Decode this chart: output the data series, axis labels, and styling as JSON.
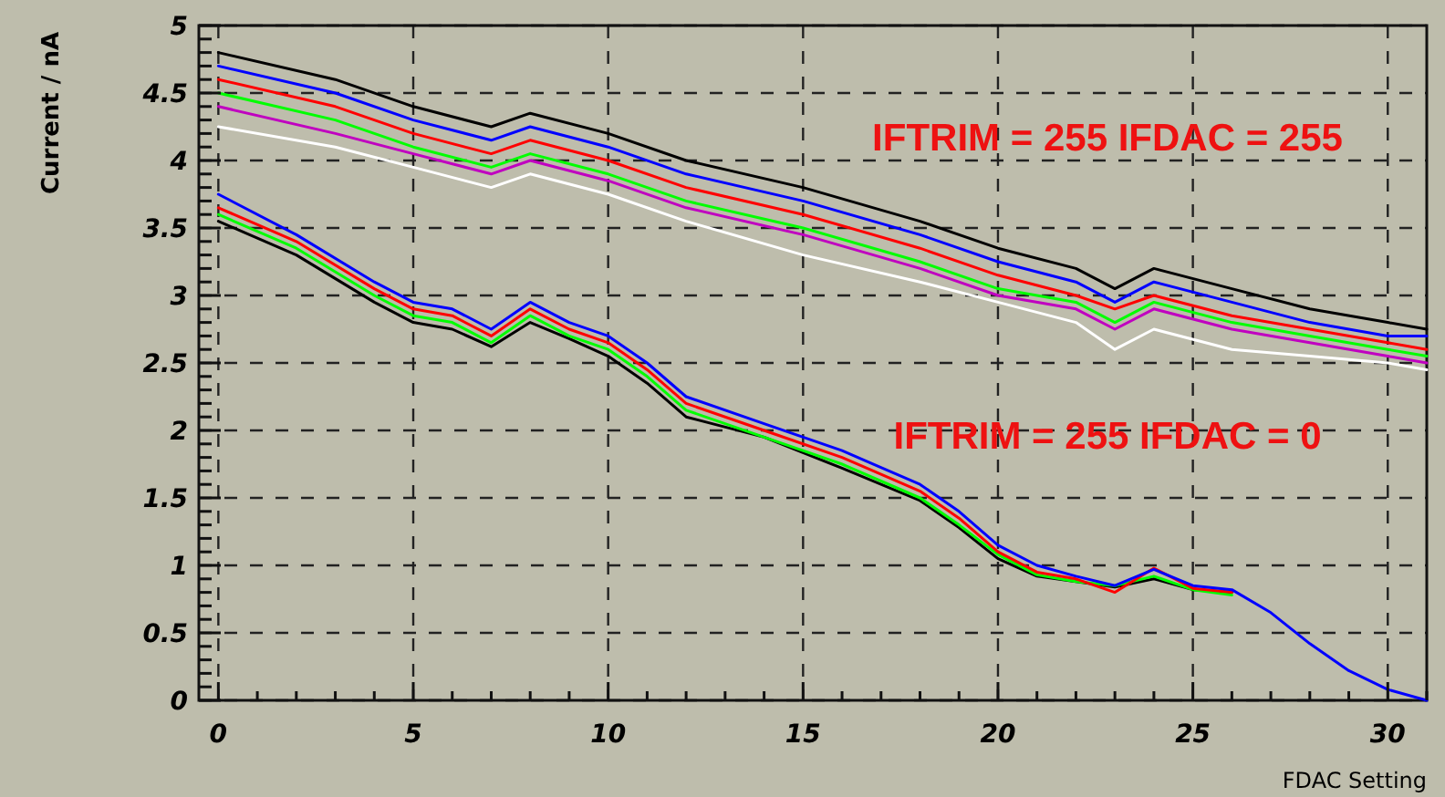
{
  "chart_data": {
    "type": "line",
    "xlabel": "FDAC Setting",
    "ylabel": "Current / nA",
    "xlim": [
      -0.5,
      31
    ],
    "ylim": [
      0,
      5
    ],
    "xticks": [
      0,
      {
        "value": 1,
        "label": null
      },
      {
        "value": 2,
        "label": null
      },
      {
        "value": 3,
        "label": null
      },
      {
        "value": 4,
        "label": null
      },
      5,
      {
        "value": 6,
        "label": null
      },
      {
        "value": 7,
        "label": null
      },
      {
        "value": 8,
        "label": null
      },
      {
        "value": 9,
        "label": null
      },
      10,
      {
        "value": 11,
        "label": null
      },
      {
        "value": 12,
        "label": null
      },
      {
        "value": 13,
        "label": null
      },
      {
        "value": 14,
        "label": null
      },
      15,
      {
        "value": 16,
        "label": null
      },
      {
        "value": 17,
        "label": null
      },
      {
        "value": 18,
        "label": null
      },
      {
        "value": 19,
        "label": null
      },
      20,
      {
        "value": 21,
        "label": null
      },
      {
        "value": 22,
        "label": null
      },
      {
        "value": 23,
        "label": null
      },
      {
        "value": 24,
        "label": null
      },
      25,
      {
        "value": 26,
        "label": null
      },
      {
        "value": 27,
        "label": null
      },
      {
        "value": 28,
        "label": null
      },
      {
        "value": 29,
        "label": null
      },
      30,
      {
        "value": 31,
        "label": null
      }
    ],
    "yticks": [
      0,
      {
        "value": 0.1,
        "label": null
      },
      {
        "value": 0.2,
        "label": null
      },
      {
        "value": 0.3,
        "label": null
      },
      {
        "value": 0.4,
        "label": null
      },
      0.5,
      {
        "value": 0.6,
        "label": null
      },
      {
        "value": 0.7,
        "label": null
      },
      {
        "value": 0.8,
        "label": null
      },
      {
        "value": 0.9,
        "label": null
      },
      1,
      {
        "value": 1.1,
        "label": null
      },
      {
        "value": 1.2,
        "label": null
      },
      {
        "value": 1.3,
        "label": null
      },
      {
        "value": 1.4,
        "label": null
      },
      1.5,
      {
        "value": 1.6,
        "label": null
      },
      {
        "value": 1.7,
        "label": null
      },
      {
        "value": 1.8,
        "label": null
      },
      {
        "value": 1.9,
        "label": null
      },
      2,
      {
        "value": 2.1,
        "label": null
      },
      {
        "value": 2.2,
        "label": null
      },
      {
        "value": 2.3,
        "label": null
      },
      {
        "value": 2.4,
        "label": null
      },
      2.5,
      {
        "value": 2.6,
        "label": null
      },
      {
        "value": 2.7,
        "label": null
      },
      {
        "value": 2.8,
        "label": null
      },
      {
        "value": 2.9,
        "label": null
      },
      3,
      {
        "value": 3.1,
        "label": null
      },
      {
        "value": 3.2,
        "label": null
      },
      {
        "value": 3.3,
        "label": null
      },
      {
        "value": 3.4,
        "label": null
      },
      3.5,
      {
        "value": 3.6,
        "label": null
      },
      {
        "value": 3.7,
        "label": null
      },
      {
        "value": 3.8,
        "label": null
      },
      {
        "value": 3.9,
        "label": null
      },
      4,
      {
        "value": 4.1,
        "label": null
      },
      {
        "value": 4.2,
        "label": null
      },
      {
        "value": 4.3,
        "label": null
      },
      {
        "value": 4.4,
        "label": null
      },
      4.5,
      {
        "value": 4.6,
        "label": null
      },
      {
        "value": 4.7,
        "label": null
      },
      {
        "value": 4.8,
        "label": null
      },
      {
        "value": 4.9,
        "label": null
      },
      5
    ],
    "grid": true,
    "marker": "none",
    "line_style": "solid",
    "series": [
      {
        "color": "#000000",
        "x": [
          0,
          3,
          5,
          7,
          8,
          10,
          12,
          15,
          18,
          20,
          22,
          23,
          24,
          26,
          28,
          30,
          31
        ],
        "values": [
          4.8,
          4.6,
          4.4,
          4.25,
          4.35,
          4.2,
          4.0,
          3.8,
          3.55,
          3.35,
          3.2,
          3.05,
          3.2,
          3.05,
          2.9,
          2.8,
          2.75
        ]
      },
      {
        "color": "#0000ff",
        "x": [
          0,
          3,
          5,
          7,
          8,
          10,
          12,
          15,
          18,
          20,
          22,
          23,
          24,
          26,
          28,
          30,
          31
        ],
        "values": [
          4.7,
          4.5,
          4.3,
          4.15,
          4.25,
          4.1,
          3.9,
          3.7,
          3.45,
          3.25,
          3.1,
          2.95,
          3.1,
          2.95,
          2.8,
          2.7,
          2.7
        ]
      },
      {
        "color": "#ff0000",
        "x": [
          0,
          3,
          5,
          7,
          8,
          10,
          12,
          15,
          18,
          20,
          22,
          23,
          24,
          26,
          28,
          30,
          31
        ],
        "values": [
          4.6,
          4.4,
          4.2,
          4.05,
          4.15,
          4.0,
          3.8,
          3.6,
          3.35,
          3.15,
          3.0,
          2.9,
          3.0,
          2.85,
          2.75,
          2.65,
          2.6
        ]
      },
      {
        "color": "#00ff00",
        "x": [
          0,
          3,
          5,
          7,
          8,
          10,
          12,
          15,
          18,
          20,
          22,
          23,
          24,
          26,
          28,
          30,
          31
        ],
        "values": [
          4.5,
          4.3,
          4.1,
          3.95,
          4.05,
          3.9,
          3.7,
          3.5,
          3.25,
          3.05,
          2.95,
          2.8,
          2.95,
          2.8,
          2.7,
          2.6,
          2.55
        ]
      },
      {
        "color": "#c000c0",
        "x": [
          0,
          3,
          5,
          7,
          8,
          10,
          12,
          15,
          18,
          20,
          22,
          23,
          24,
          26,
          28,
          30,
          31
        ],
        "values": [
          4.4,
          4.2,
          4.05,
          3.9,
          4.0,
          3.85,
          3.65,
          3.45,
          3.2,
          3.0,
          2.9,
          2.75,
          2.9,
          2.75,
          2.65,
          2.55,
          2.5
        ]
      },
      {
        "color": "#ffffff",
        "x": [
          0,
          3,
          5,
          7,
          8,
          10,
          12,
          15,
          18,
          20,
          22,
          23,
          24,
          26,
          28,
          30,
          31
        ],
        "values": [
          4.25,
          4.1,
          3.95,
          3.8,
          3.9,
          3.75,
          3.55,
          3.3,
          3.1,
          2.95,
          2.8,
          2.6,
          2.75,
          2.6,
          2.55,
          2.5,
          2.45
        ]
      },
      {
        "color": "#000000",
        "x": [
          0,
          2,
          4,
          5,
          6,
          7,
          8,
          9,
          10,
          11,
          12,
          14,
          16,
          18,
          19,
          20,
          21,
          22,
          23,
          24,
          25,
          26
        ],
        "values": [
          3.55,
          3.3,
          2.95,
          2.8,
          2.75,
          2.62,
          2.8,
          2.68,
          2.55,
          2.35,
          2.1,
          1.95,
          1.72,
          1.48,
          1.28,
          1.05,
          0.92,
          0.88,
          0.84,
          0.9,
          0.82,
          0.8
        ]
      },
      {
        "color": "#00ff00",
        "x": [
          0,
          2,
          4,
          5,
          6,
          7,
          8,
          9,
          10,
          11,
          12,
          14,
          16,
          18,
          19,
          20,
          21,
          22,
          23,
          24,
          25,
          26
        ],
        "values": [
          3.6,
          3.35,
          3.0,
          2.85,
          2.8,
          2.65,
          2.85,
          2.7,
          2.6,
          2.4,
          2.15,
          1.95,
          1.75,
          1.5,
          1.3,
          1.08,
          0.93,
          0.88,
          0.85,
          0.92,
          0.82,
          0.78
        ]
      },
      {
        "color": "#ff0000",
        "x": [
          0,
          2,
          4,
          5,
          6,
          7,
          8,
          9,
          10,
          11,
          12,
          14,
          16,
          18,
          19,
          20,
          21,
          22,
          23,
          24,
          25,
          26
        ],
        "values": [
          3.65,
          3.4,
          3.05,
          2.9,
          2.85,
          2.7,
          2.9,
          2.75,
          2.65,
          2.45,
          2.2,
          2.0,
          1.8,
          1.55,
          1.35,
          1.1,
          0.95,
          0.9,
          0.8,
          0.98,
          0.83,
          0.8
        ]
      },
      {
        "color": "#0000ff",
        "x": [
          0,
          2,
          4,
          5,
          6,
          7,
          8,
          9,
          10,
          11,
          12,
          14,
          16,
          18,
          19,
          20,
          21,
          22,
          23,
          24,
          25,
          26,
          27,
          28,
          29,
          30,
          31
        ],
        "values": [
          3.75,
          3.45,
          3.1,
          2.95,
          2.9,
          2.75,
          2.95,
          2.8,
          2.7,
          2.5,
          2.25,
          2.05,
          1.85,
          1.6,
          1.4,
          1.15,
          1.0,
          0.92,
          0.85,
          0.97,
          0.85,
          0.82,
          0.65,
          0.42,
          0.22,
          0.08,
          0.0
        ]
      }
    ],
    "annotations": [
      "IFTRIM = 255 IFDAC = 255",
      "IFTRIM = 255 IFDAC = 0"
    ]
  }
}
